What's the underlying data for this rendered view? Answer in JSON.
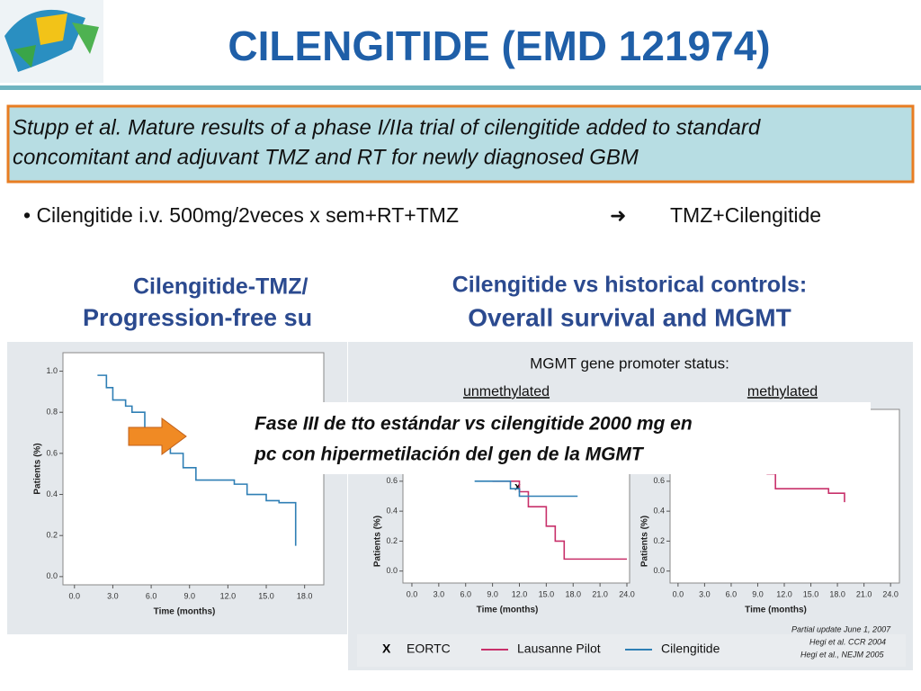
{
  "header": {
    "title": "CILENGITIDE (EMD 121974)"
  },
  "box": {
    "lines": [
      "Stupp et al. Mature results of a phase I/IIa trial of cilengitide added to standard",
      "concomitant and adjuvant TMZ and RT for newly diagnosed GBM"
    ]
  },
  "bullet": {
    "left": "• Cilengitide  i.v. 500mg/2veces x sem+RT+TMZ",
    "arrow": "➜",
    "right": "TMZ+Cilengitide"
  },
  "left_panel": {
    "title_lines": [
      "Cilengitide-TMZ/",
      "Progression-free su"
    ]
  },
  "right_panel": {
    "title_lines": [
      "Cilengitide vs historical controls:",
      "Overall survival and MGMT"
    ],
    "subtitle": "MGMT gene promoter status:",
    "notes": [
      "Partial update June 1, 2007",
      "Hegi et al. CCR 2004",
      "Hegi et al., NEJM 2005"
    ]
  },
  "overlay": {
    "lines": [
      "Fase III de tto estándar vs cilengitide  2000 mg en",
      "pc con hipermetilación del gen de la MGMT"
    ]
  },
  "chart_data": [
    {
      "type": "line",
      "xlabel": "Time (months)",
      "ylabel": "Patients (%)",
      "xlim": [
        -0.9,
        19.5
      ],
      "ylim": [
        -0.04,
        1.09
      ],
      "xticks": [
        {
          "value": 0,
          "label": "0.0"
        },
        {
          "value": 3,
          "label": "3.0"
        },
        {
          "value": 6,
          "label": "6.0"
        },
        {
          "value": 9,
          "label": "9.0"
        },
        {
          "value": 12,
          "label": "12.0"
        },
        {
          "value": 15,
          "label": "15.0"
        },
        {
          "value": 18,
          "label": "18.0"
        }
      ],
      "yticks": [
        {
          "value": 0,
          "label": "0.0"
        },
        {
          "value": 0.2,
          "label": "0.2"
        },
        {
          "value": 0.4,
          "label": "0.4"
        },
        {
          "value": 0.6,
          "label": "0.6"
        },
        {
          "value": 0.8,
          "label": "0.8"
        },
        {
          "value": 1,
          "label": "1.0"
        }
      ],
      "series": [
        {
          "color": "#2f7fb5",
          "x": [
            1.8,
            2.5,
            3,
            4,
            4.5,
            5.5,
            6.5,
            7.5,
            8.5,
            9.5,
            12,
            12.5,
            13.5,
            15,
            16,
            17,
            17.3
          ],
          "values": [
            0.98,
            0.92,
            0.86,
            0.83,
            0.8,
            0.72,
            0.65,
            0.6,
            0.53,
            0.47,
            0.47,
            0.45,
            0.4,
            0.37,
            0.36,
            0.36,
            0.15
          ]
        }
      ]
    },
    {
      "type": "line",
      "title": "unmethylated",
      "xlabel": "Time (months)",
      "ylabel": "Patients (%)",
      "xlim": [
        -1,
        24.3
      ],
      "ylim": [
        -0.08,
        1.08
      ],
      "xticks": [
        {
          "value": 0,
          "label": "0.0"
        },
        {
          "value": 3,
          "label": "3.0"
        },
        {
          "value": 6,
          "label": "6.0"
        },
        {
          "value": 9,
          "label": "9.0"
        },
        {
          "value": 12,
          "label": "12.0"
        },
        {
          "value": 15,
          "label": "15.0"
        },
        {
          "value": 18,
          "label": "18.0"
        },
        {
          "value": 21,
          "label": "21.0"
        },
        {
          "value": 24,
          "label": "24.0"
        }
      ],
      "yticks": [
        {
          "value": 0,
          "label": "0.0"
        },
        {
          "value": 0.2,
          "label": "0.2"
        },
        {
          "value": 0.4,
          "label": "0.4"
        },
        {
          "value": 0.6,
          "label": "0.6"
        }
      ],
      "series": [
        {
          "name": "EORTC",
          "marker": "x",
          "color": "#000000",
          "x": [
            11.8
          ],
          "values": [
            0.56
          ]
        },
        {
          "name": "Lausanne Pilot",
          "color": "#c8306a",
          "x": [
            9,
            12,
            13,
            15,
            16,
            17,
            24
          ],
          "values": [
            0.6,
            0.53,
            0.43,
            0.3,
            0.2,
            0.08,
            0.08
          ]
        },
        {
          "name": "Cilengitide",
          "color": "#2f7fb5",
          "x": [
            7,
            11,
            12,
            18.5
          ],
          "values": [
            0.6,
            0.55,
            0.5,
            0.5
          ]
        }
      ]
    },
    {
      "type": "line",
      "title": "methylated",
      "xlabel": "Time (months)",
      "ylabel": "Patients (%)",
      "xlim": [
        -0.9,
        25
      ],
      "ylim": [
        -0.08,
        1.08
      ],
      "xticks": [
        {
          "value": 0,
          "label": "0.0"
        },
        {
          "value": 3,
          "label": "3.0"
        },
        {
          "value": 6,
          "label": "6.0"
        },
        {
          "value": 9,
          "label": "9.0"
        },
        {
          "value": 12,
          "label": "12.0"
        },
        {
          "value": 15,
          "label": "15.0"
        },
        {
          "value": 18,
          "label": "18.0"
        },
        {
          "value": 21,
          "label": "21.0"
        },
        {
          "value": 24,
          "label": "24.0"
        }
      ],
      "yticks": [
        {
          "value": 0,
          "label": "0.0"
        },
        {
          "value": 0.2,
          "label": "0.2"
        },
        {
          "value": 0.4,
          "label": "0.4"
        },
        {
          "value": 0.6,
          "label": "0.6"
        }
      ],
      "series": [
        {
          "color": "#c8306a",
          "x": [
            10,
            11,
            13,
            17,
            18.8
          ],
          "values": [
            0.65,
            0.55,
            0.55,
            0.52,
            0.46
          ]
        }
      ]
    }
  ]
}
